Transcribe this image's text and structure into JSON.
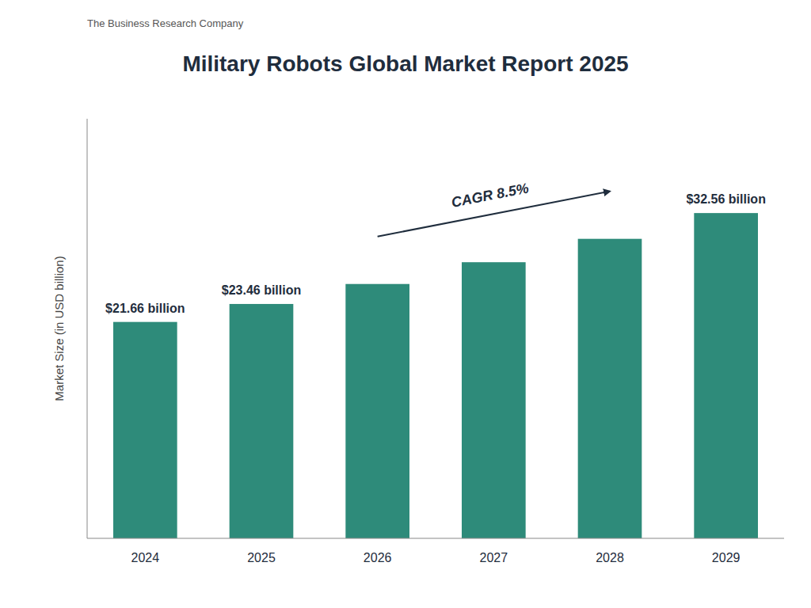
{
  "chart_data": {
    "type": "bar",
    "title": "Military Robots Global Market Report 2025",
    "categories": [
      "2024",
      "2025",
      "2026",
      "2027",
      "2028",
      "2029"
    ],
    "values": [
      21.66,
      23.46,
      25.46,
      27.64,
      29.98,
      32.56
    ],
    "value_labels": [
      "$21.66 billion",
      "$23.46 billion",
      null,
      null,
      null,
      "$32.56 billion"
    ],
    "data_labels": true,
    "color": "#2E8B7A",
    "ylabel": "Market Size (in USD billion)",
    "ylim": [
      0,
      42
    ],
    "tick_labels": "x",
    "grid": false,
    "annotations": [
      "CAGR 8.5%",
      "The Business Research Company"
    ]
  }
}
